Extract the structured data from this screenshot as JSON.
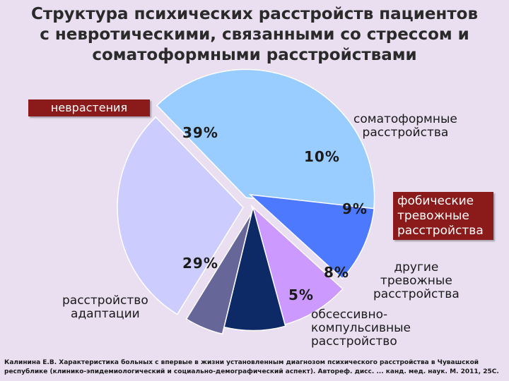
{
  "title_lines": [
    "Структура психических расстройств пациентов",
    "с невротическими, связанными со стрессом и",
    "соматоформными расстройствами"
  ],
  "chart_data": {
    "type": "pie",
    "slices": [
      {
        "label": "неврастения",
        "value": 39,
        "pct_text": "39%",
        "color": "#99ccff"
      },
      {
        "label": "соматоформные расстройства",
        "value": 10,
        "pct_text": "10%",
        "color": "#4d79ff"
      },
      {
        "label": "фобические тревожные расстройства",
        "value": 9,
        "pct_text": "9%",
        "color": "#cc99ff"
      },
      {
        "label": "другие тревожные расстройства",
        "value": 8,
        "pct_text": "8%",
        "color": "#0d2a66"
      },
      {
        "label": "обсессивно-компульсивные расстройство",
        "value": 5,
        "pct_text": "5%",
        "color": "#666699"
      },
      {
        "label": "расстройство адаптации",
        "value": 29,
        "pct_text": "29%",
        "color": "#ccccff"
      }
    ]
  },
  "labels": {
    "nevr": "неврастения",
    "somato": [
      "соматоформные",
      "расстройства"
    ],
    "fob": [
      "фобические",
      "тревожные",
      "расстройства"
    ],
    "drugie": [
      "другие",
      "тревожные",
      "расстройства"
    ],
    "okr": [
      "обсессивно-",
      "компульсивные",
      "расстройство"
    ],
    "adapt": [
      "расстройство",
      "адаптации"
    ]
  },
  "footnote": "Калинина Е.В. Характеристика больных с впервые в жизни установленным диагнозом психического расстройства в Чувашской республике (клинико-эпидемиологический и социально-демографический аспект). Автореф. дисс. ... канд. мед. наук. М. 2011, 25С."
}
